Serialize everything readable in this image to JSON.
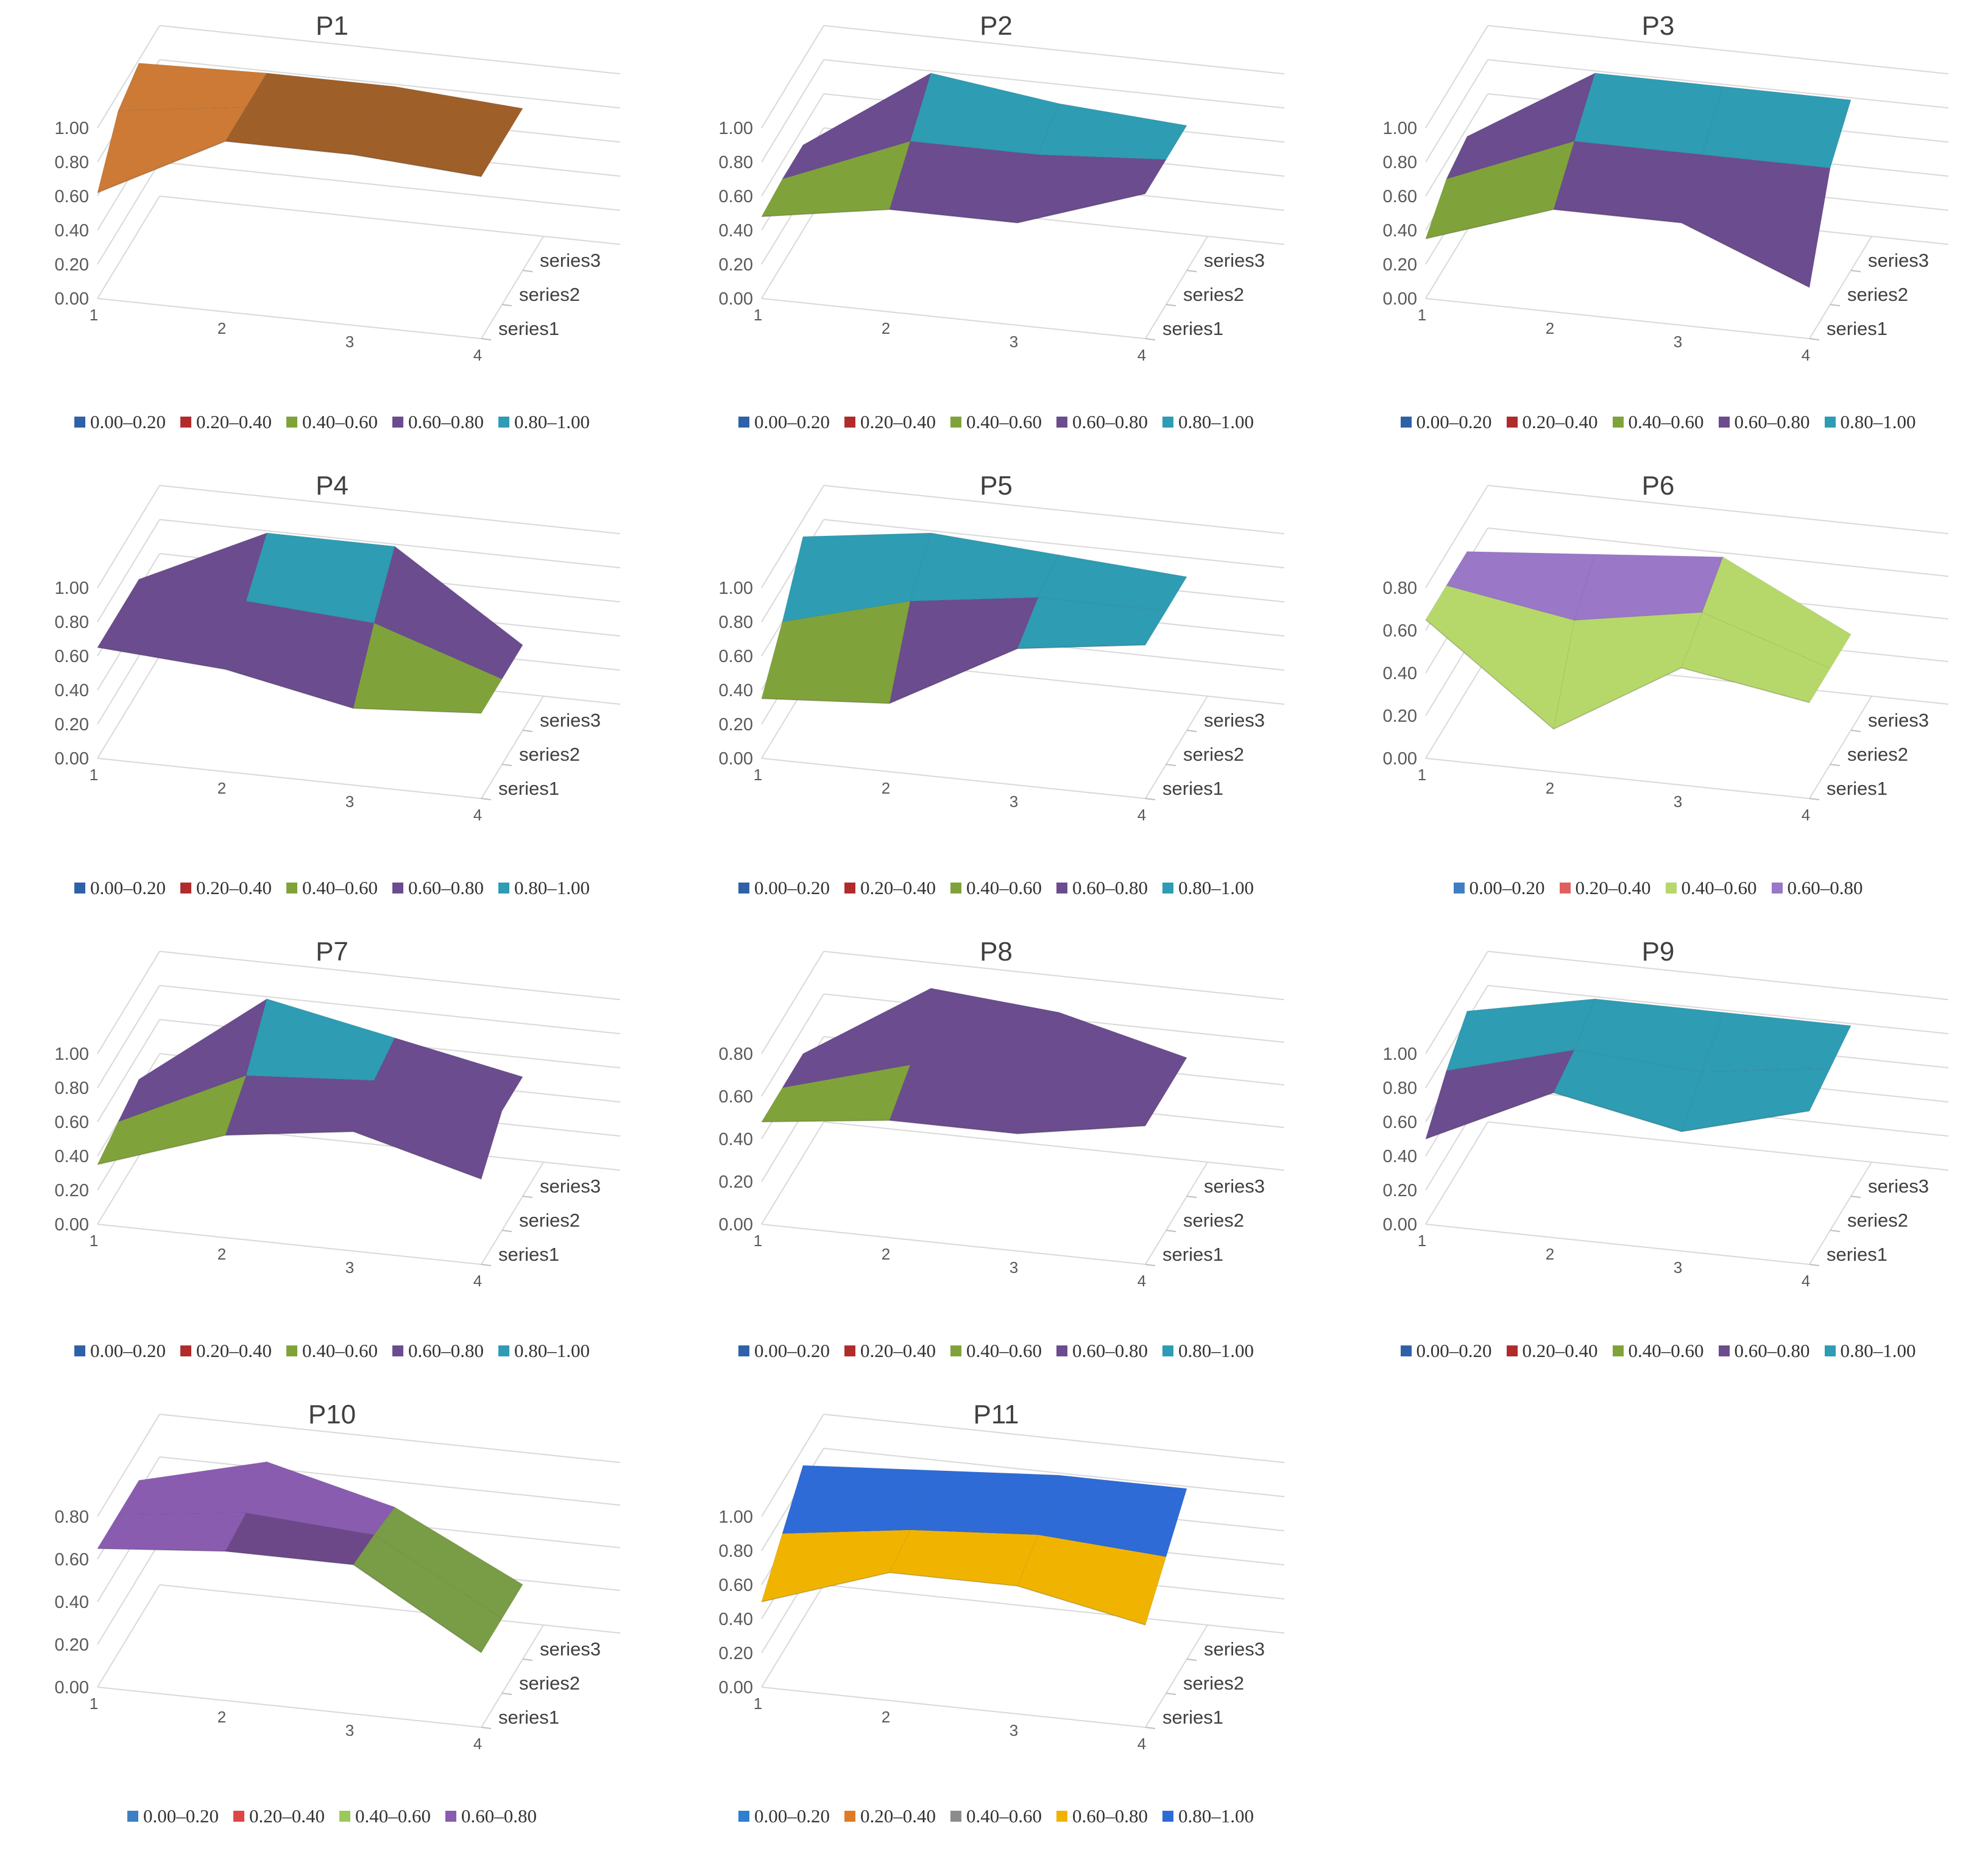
{
  "chart_data": [
    {
      "type": "surface",
      "title": "P1",
      "zticks": [
        "0.00",
        "0.20",
        "0.40",
        "0.60",
        "0.80",
        "1.00"
      ],
      "x": [
        "1",
        "2",
        "3",
        "4"
      ],
      "y": [
        "series1",
        "series2",
        "series3"
      ],
      "values": [
        [
          0.62,
          1.0,
          1.0,
          0.95
        ],
        [
          0.9,
          1.0,
          1.0,
          0.95
        ],
        [
          0.98,
          1.0,
          1.0,
          0.95
        ]
      ],
      "legend": [
        {
          "label": "0.00–0.20",
          "color": "#2E62A8"
        },
        {
          "label": "0.20–0.40",
          "color": "#B22B2B"
        },
        {
          "label": "0.40–0.60",
          "color": "#7FA33A"
        },
        {
          "label": "0.60–0.80",
          "color": "#6B4C8E"
        },
        {
          "label": "0.80–1.00",
          "color": "#2E9CB3"
        }
      ],
      "fills": {
        "0.80–1.00": "#CC7A35"
      }
    },
    {
      "type": "surface",
      "title": "P2",
      "zticks": [
        "0.00",
        "0.20",
        "0.40",
        "0.60",
        "0.80",
        "1.00"
      ],
      "x": [
        "1",
        "2",
        "3",
        "4"
      ],
      "y": [
        "series1",
        "series2",
        "series3"
      ],
      "values": [
        [
          0.48,
          0.6,
          0.6,
          0.85
        ],
        [
          0.5,
          0.8,
          0.8,
          0.85
        ],
        [
          0.5,
          1.0,
          0.9,
          0.85
        ]
      ],
      "legend": [
        {
          "label": "0.00–0.20",
          "color": "#2E62A8"
        },
        {
          "label": "0.20–0.40",
          "color": "#B22B2B"
        },
        {
          "label": "0.40–0.60",
          "color": "#7FA33A"
        },
        {
          "label": "0.60–0.80",
          "color": "#6B4C8E"
        },
        {
          "label": "0.80–1.00",
          "color": "#2E9CB3"
        }
      ]
    },
    {
      "type": "surface",
      "title": "P3",
      "zticks": [
        "0.00",
        "0.20",
        "0.40",
        "0.60",
        "0.80",
        "1.00"
      ],
      "x": [
        "1",
        "2",
        "3",
        "4"
      ],
      "y": [
        "series1",
        "series2",
        "series3"
      ],
      "values": [
        [
          0.35,
          0.6,
          0.6,
          0.3
        ],
        [
          0.5,
          0.8,
          0.8,
          0.8
        ],
        [
          0.55,
          1.0,
          1.0,
          1.0
        ]
      ],
      "legend": [
        {
          "label": "0.00–0.20",
          "color": "#2E62A8"
        },
        {
          "label": "0.20–0.40",
          "color": "#B22B2B"
        },
        {
          "label": "0.40–0.60",
          "color": "#7FA33A"
        },
        {
          "label": "0.60–0.80",
          "color": "#6B4C8E"
        },
        {
          "label": "0.80–1.00",
          "color": "#2E9CB3"
        }
      ]
    },
    {
      "type": "surface",
      "title": "P4",
      "zticks": [
        "0.00",
        "0.20",
        "0.40",
        "0.60",
        "0.80",
        "1.00"
      ],
      "x": [
        "1",
        "2",
        "3",
        "4"
      ],
      "y": [
        "series1",
        "series2",
        "series3"
      ],
      "values": [
        [
          0.65,
          0.6,
          0.45,
          0.5
        ],
        [
          0.65,
          0.8,
          0.75,
          0.5
        ],
        [
          0.65,
          1.0,
          1.0,
          0.5
        ]
      ],
      "legend": [
        {
          "label": "0.00–0.20",
          "color": "#2E62A8"
        },
        {
          "label": "0.20–0.40",
          "color": "#B22B2B"
        },
        {
          "label": "0.40–0.60",
          "color": "#7FA33A"
        },
        {
          "label": "0.60–0.80",
          "color": "#6B4C8E"
        },
        {
          "label": "0.80–1.00",
          "color": "#2E9CB3"
        }
      ]
    },
    {
      "type": "surface",
      "title": "P5",
      "zticks": [
        "0.00",
        "0.20",
        "0.40",
        "0.60",
        "0.80",
        "1.00"
      ],
      "x": [
        "1",
        "2",
        "3",
        "4"
      ],
      "y": [
        "series1",
        "series2",
        "series3"
      ],
      "values": [
        [
          0.35,
          0.4,
          0.8,
          0.9
        ],
        [
          0.6,
          0.8,
          0.9,
          0.9
        ],
        [
          0.9,
          1.0,
          0.95,
          0.9
        ]
      ],
      "legend": [
        {
          "label": "0.00–0.20",
          "color": "#2E62A8"
        },
        {
          "label": "0.20–0.40",
          "color": "#B22B2B"
        },
        {
          "label": "0.40–0.60",
          "color": "#7FA33A"
        },
        {
          "label": "0.60–0.80",
          "color": "#6B4C8E"
        },
        {
          "label": "0.80–1.00",
          "color": "#2E9CB3"
        }
      ]
    },
    {
      "type": "surface",
      "title": "P6",
      "zticks": [
        "0.00",
        "0.20",
        "0.40",
        "0.60",
        "0.80"
      ],
      "x": [
        "1",
        "2",
        "3",
        "4"
      ],
      "y": [
        "series1",
        "series2",
        "series3"
      ],
      "values": [
        [
          0.65,
          0.2,
          0.55,
          0.45
        ],
        [
          0.65,
          0.55,
          0.65,
          0.45
        ],
        [
          0.65,
          0.7,
          0.75,
          0.45
        ]
      ],
      "legend": [
        {
          "label": "0.00–0.20",
          "color": "#3E7FC4"
        },
        {
          "label": "0.20–0.40",
          "color": "#E06060"
        },
        {
          "label": "0.40–0.60",
          "color": "#B6D86A"
        },
        {
          "label": "0.60–0.80",
          "color": "#9A77C7"
        }
      ]
    },
    {
      "type": "surface",
      "title": "P7",
      "zticks": [
        "0.00",
        "0.20",
        "0.40",
        "0.60",
        "0.80",
        "1.00"
      ],
      "x": [
        "1",
        "2",
        "3",
        "4"
      ],
      "y": [
        "series1",
        "series2",
        "series3"
      ],
      "values": [
        [
          0.35,
          0.6,
          0.7,
          0.5
        ],
        [
          0.4,
          0.75,
          0.8,
          0.7
        ],
        [
          0.45,
          1.0,
          0.85,
          0.7
        ]
      ],
      "legend": [
        {
          "label": "0.00–0.20",
          "color": "#2E62A8"
        },
        {
          "label": "0.20–0.40",
          "color": "#B22B2B"
        },
        {
          "label": "0.40–0.60",
          "color": "#7FA33A"
        },
        {
          "label": "0.60–0.80",
          "color": "#6B4C8E"
        },
        {
          "label": "0.80–1.00",
          "color": "#2E9CB3"
        }
      ]
    },
    {
      "type": "surface",
      "title": "P8",
      "zticks": [
        "0.00",
        "0.20",
        "0.40",
        "0.60",
        "0.80"
      ],
      "x": [
        "1",
        "2",
        "3",
        "4"
      ],
      "y": [
        "series1",
        "series2",
        "series3"
      ],
      "values": [
        [
          0.48,
          0.55,
          0.55,
          0.65
        ],
        [
          0.48,
          0.65,
          0.75,
          0.65
        ],
        [
          0.48,
          0.85,
          0.8,
          0.65
        ]
      ],
      "legend": [
        {
          "label": "0.00–0.20",
          "color": "#2E62A8"
        },
        {
          "label": "0.20–0.40",
          "color": "#B22B2B"
        },
        {
          "label": "0.40–0.60",
          "color": "#7FA33A"
        },
        {
          "label": "0.60–0.80",
          "color": "#6B4C8E"
        },
        {
          "label": "0.80–1.00",
          "color": "#2E9CB3"
        }
      ]
    },
    {
      "type": "surface",
      "title": "P9",
      "zticks": [
        "0.00",
        "0.20",
        "0.40",
        "0.60",
        "0.80",
        "1.00"
      ],
      "x": [
        "1",
        "2",
        "3",
        "4"
      ],
      "y": [
        "series1",
        "series2",
        "series3"
      ],
      "values": [
        [
          0.5,
          0.85,
          0.7,
          0.9
        ],
        [
          0.7,
          0.9,
          0.85,
          0.95
        ],
        [
          0.85,
          1.0,
          1.0,
          1.0
        ]
      ],
      "legend": [
        {
          "label": "0.00–0.20",
          "color": "#2E62A8"
        },
        {
          "label": "0.20–0.40",
          "color": "#B22B2B"
        },
        {
          "label": "0.40–0.60",
          "color": "#7FA33A"
        },
        {
          "label": "0.60–0.80",
          "color": "#6B4C8E"
        },
        {
          "label": "0.80–1.00",
          "color": "#2E9CB3"
        }
      ]
    },
    {
      "type": "surface",
      "title": "P10",
      "zticks": [
        "0.00",
        "0.20",
        "0.40",
        "0.60",
        "0.80"
      ],
      "x": [
        "1",
        "2",
        "3",
        "4"
      ],
      "y": [
        "series1",
        "series2",
        "series3"
      ],
      "values": [
        [
          0.65,
          0.7,
          0.7,
          0.35
        ],
        [
          0.65,
          0.72,
          0.68,
          0.35
        ],
        [
          0.65,
          0.8,
          0.65,
          0.35
        ]
      ],
      "legend": [
        {
          "label": "0.00–0.20",
          "color": "#3E7FC4"
        },
        {
          "label": "0.20–0.40",
          "color": "#E04545"
        },
        {
          "label": "0.40–0.60",
          "color": "#9BC85A"
        },
        {
          "label": "0.60–0.80",
          "color": "#8A5CB0"
        }
      ]
    },
    {
      "type": "surface",
      "title": "P11",
      "zticks": [
        "0.00",
        "0.20",
        "0.40",
        "0.60",
        "0.80",
        "1.00"
      ],
      "x": [
        "1",
        "2",
        "3",
        "4"
      ],
      "y": [
        "series1",
        "series2",
        "series3"
      ],
      "values": [
        [
          0.5,
          0.75,
          0.75,
          0.6
        ],
        [
          0.7,
          0.8,
          0.85,
          0.8
        ],
        [
          0.9,
          0.95,
          1.0,
          1.0
        ]
      ],
      "legend": [
        {
          "label": "0.00–0.20",
          "color": "#2F7FD1"
        },
        {
          "label": "0.20–0.40",
          "color": "#E07A27"
        },
        {
          "label": "0.40–0.60",
          "color": "#8C8C8C"
        },
        {
          "label": "0.60–0.80",
          "color": "#F0B400"
        },
        {
          "label": "0.80–1.00",
          "color": "#2E6BD6"
        }
      ]
    }
  ]
}
